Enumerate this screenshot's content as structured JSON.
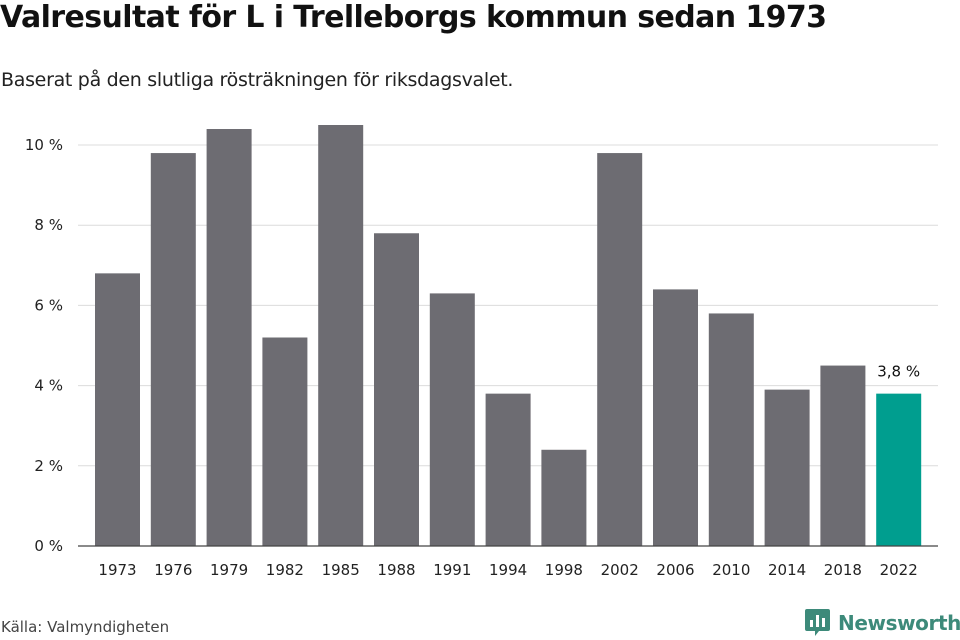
{
  "chart_data": {
    "type": "bar",
    "title": "Valresultat för L i Trelleborgs kommun sedan 1973",
    "subtitle": "Baserat på den slutliga rösträkningen för riksdagsvalet.",
    "categories": [
      "1973",
      "1976",
      "1979",
      "1982",
      "1985",
      "1988",
      "1991",
      "1994",
      "1998",
      "2002",
      "2006",
      "2010",
      "2014",
      "2018",
      "2022"
    ],
    "values": [
      6.8,
      9.8,
      10.4,
      5.2,
      10.5,
      7.8,
      6.3,
      3.8,
      2.4,
      9.8,
      6.4,
      5.8,
      3.9,
      4.5,
      3.8
    ],
    "ylim": [
      0,
      10.5
    ],
    "yticks": [
      0,
      2,
      4,
      6,
      8,
      10
    ],
    "ytick_labels": [
      "0 %",
      "2 %",
      "4 %",
      "6 %",
      "8 %",
      "10 %"
    ],
    "grid": true,
    "bar_color": "#6d6c72",
    "highlight_color": "#009e8f",
    "highlight_index": 14,
    "annotation": "3,8 %"
  },
  "source": "Källa: Valmyndigheten",
  "brand": {
    "name": "Newsworthy",
    "icon": "newsworthy-logo-icon",
    "color": "#3d8a7a"
  }
}
